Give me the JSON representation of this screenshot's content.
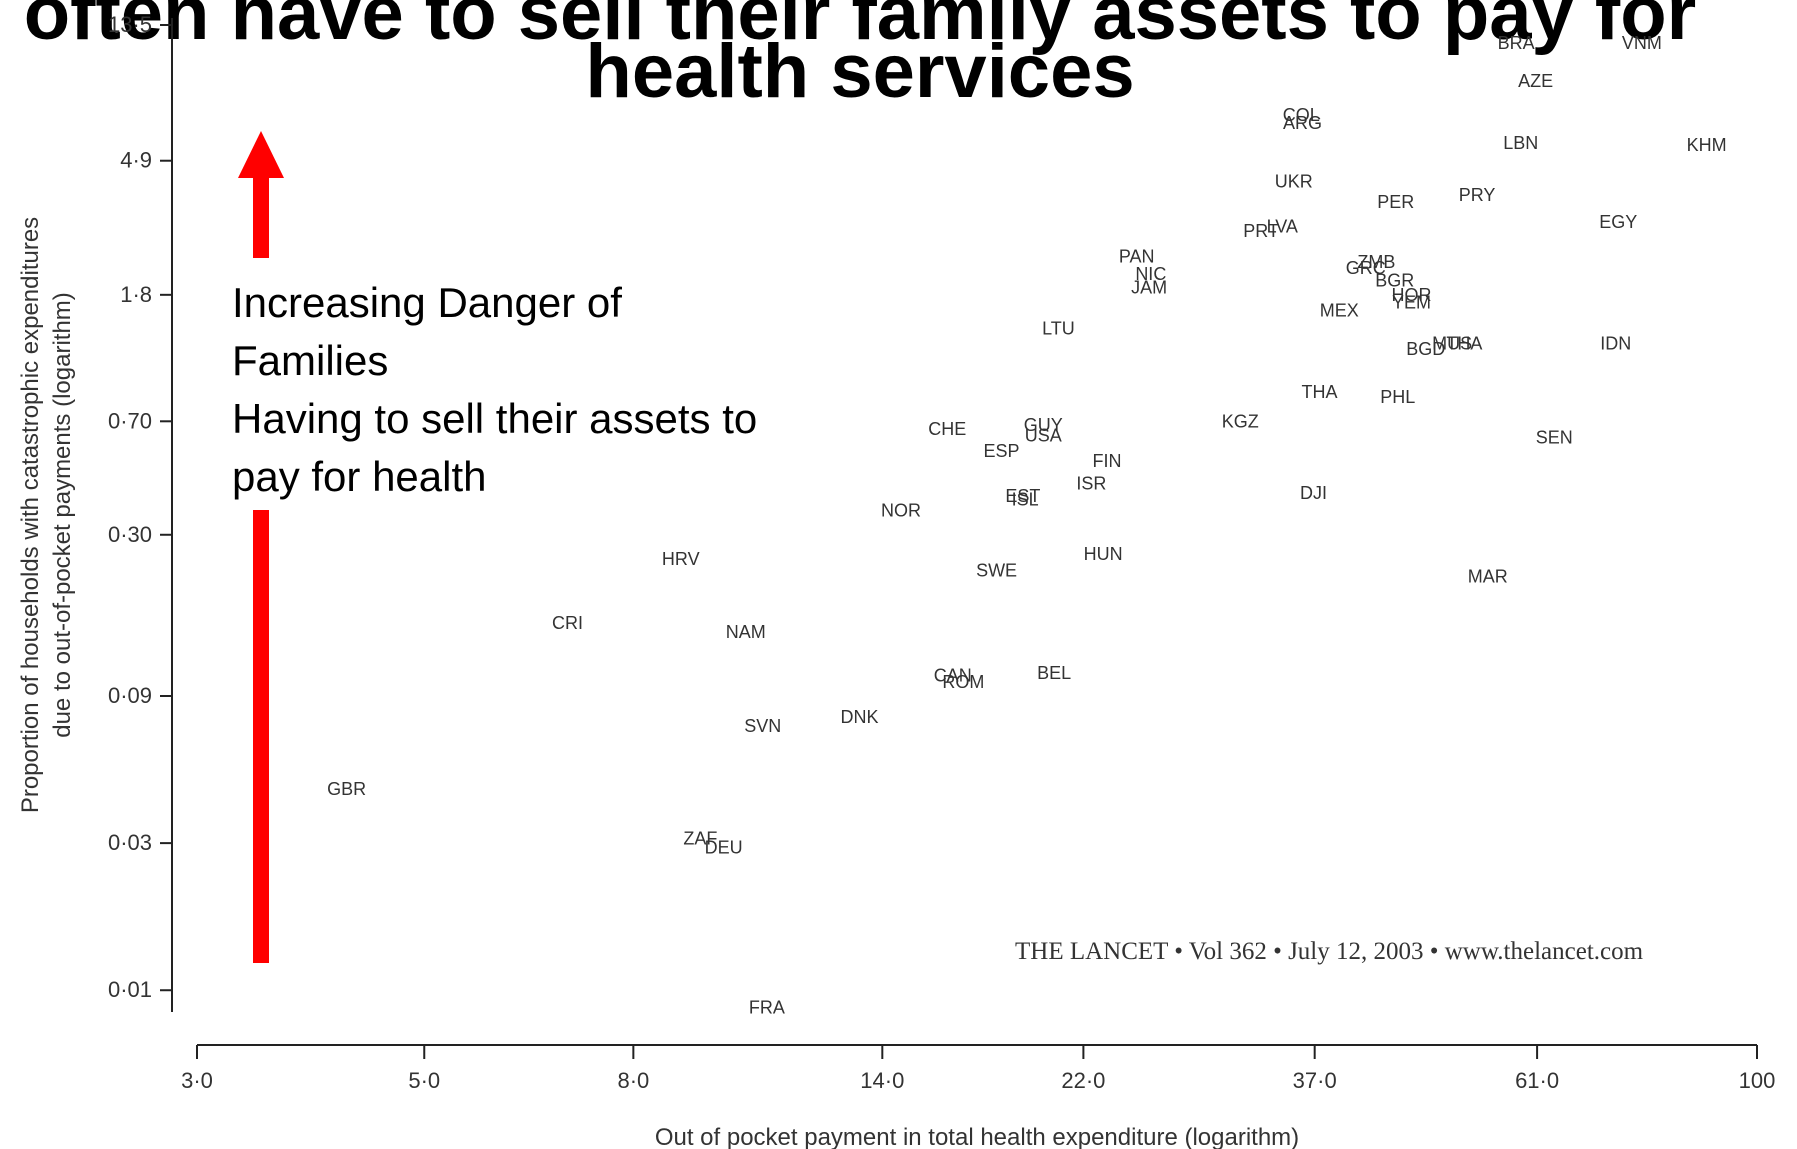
{
  "title": {
    "line1": "often have to sell their family assets to pay for",
    "line2": "health services"
  },
  "annotation": {
    "lines": [
      "Increasing Danger of",
      "Families",
      "Having to sell their assets to",
      "pay for health"
    ],
    "arrow_color": "#ff0000"
  },
  "citation": "THE LANCET • Vol 362 • July 12, 2003 • www.thelancet.com",
  "chart_data": {
    "type": "scatter",
    "xlabel": "Out of pocket payment in total health expenditure (logarithm)",
    "ylabel_lines": [
      "Proportion of households with catastrophic expenditures",
      "due to out-of-pocket payments (logarithm)"
    ],
    "x_scale": "log",
    "y_scale": "log",
    "x_ticks": [
      3.0,
      5.0,
      8.0,
      14.0,
      22.0,
      37.0,
      61.0,
      100
    ],
    "x_tick_labels": [
      "3·0",
      "5·0",
      "8·0",
      "14·0",
      "22·0",
      "37·0",
      "61·0",
      "100"
    ],
    "y_ticks": [
      0.01,
      0.03,
      0.09,
      0.3,
      0.7,
      1.8,
      4.9,
      13.5
    ],
    "y_tick_labels": [
      "0·01",
      "0·03",
      "0·09",
      "0·30",
      "0·70",
      "1·8",
      "4·9",
      "13·5"
    ],
    "xlim": [
      3.0,
      100
    ],
    "ylim": [
      0.0085,
      13.5
    ],
    "grid": false,
    "points": [
      {
        "label": "BRA",
        "x": 58.2,
        "y": 11.8
      },
      {
        "label": "VNM",
        "x": 77.2,
        "y": 11.8
      },
      {
        "label": "AZE",
        "x": 60.8,
        "y": 8.9
      },
      {
        "label": "COL",
        "x": 35.9,
        "y": 6.9
      },
      {
        "label": "ARG",
        "x": 36.0,
        "y": 6.5
      },
      {
        "label": "LBN",
        "x": 58.8,
        "y": 5.6
      },
      {
        "label": "KHM",
        "x": 89.3,
        "y": 5.5
      },
      {
        "label": "UKR",
        "x": 35.3,
        "y": 4.2
      },
      {
        "label": "PRY",
        "x": 53.3,
        "y": 3.8
      },
      {
        "label": "PER",
        "x": 44.4,
        "y": 3.6
      },
      {
        "label": "EGY",
        "x": 73.2,
        "y": 3.1
      },
      {
        "label": "PRT",
        "x": 32.8,
        "y": 2.9
      },
      {
        "label": "LVA",
        "x": 34.4,
        "y": 3.0
      },
      {
        "label": "PAN",
        "x": 24.8,
        "y": 2.4
      },
      {
        "label": "NIC",
        "x": 25.6,
        "y": 2.1
      },
      {
        "label": "JAM",
        "x": 25.5,
        "y": 1.9
      },
      {
        "label": "ZMB",
        "x": 42.5,
        "y": 2.3
      },
      {
        "label": "GRC",
        "x": 41.5,
        "y": 2.2
      },
      {
        "label": "BGR",
        "x": 44.3,
        "y": 2.0
      },
      {
        "label": "HOR",
        "x": 46.0,
        "y": 1.8
      },
      {
        "label": "YEM",
        "x": 46.0,
        "y": 1.7
      },
      {
        "label": "MEX",
        "x": 39.1,
        "y": 1.6
      },
      {
        "label": "LTU",
        "x": 20.8,
        "y": 1.4
      },
      {
        "label": "BGD",
        "x": 47.5,
        "y": 1.2
      },
      {
        "label": "MUS",
        "x": 50.4,
        "y": 1.25
      },
      {
        "label": "THA",
        "x": 51.8,
        "y": 1.25
      },
      {
        "label": "IDN",
        "x": 72.8,
        "y": 1.25
      },
      {
        "label": "THA",
        "x": 37.4,
        "y": 0.87
      },
      {
        "label": "PHL",
        "x": 44.6,
        "y": 0.84
      },
      {
        "label": "KGZ",
        "x": 31.3,
        "y": 0.7
      },
      {
        "label": "SEN",
        "x": 63.4,
        "y": 0.62
      },
      {
        "label": "CHE",
        "x": 16.2,
        "y": 0.66
      },
      {
        "label": "GUY",
        "x": 20.1,
        "y": 0.68
      },
      {
        "label": "USA",
        "x": 20.1,
        "y": 0.63
      },
      {
        "label": "ESP",
        "x": 18.3,
        "y": 0.56
      },
      {
        "label": "FIN",
        "x": 23.2,
        "y": 0.52
      },
      {
        "label": "ISR",
        "x": 22.4,
        "y": 0.44
      },
      {
        "label": "DJI",
        "x": 36.9,
        "y": 0.41
      },
      {
        "label": "EST",
        "x": 19.2,
        "y": 0.4
      },
      {
        "label": "ISL",
        "x": 19.3,
        "y": 0.39
      },
      {
        "label": "NOR",
        "x": 14.6,
        "y": 0.36
      },
      {
        "label": "HRV",
        "x": 8.9,
        "y": 0.25
      },
      {
        "label": "HUN",
        "x": 23.0,
        "y": 0.26
      },
      {
        "label": "SWE",
        "x": 18.1,
        "y": 0.23
      },
      {
        "label": "MAR",
        "x": 54.6,
        "y": 0.22
      },
      {
        "label": "CRI",
        "x": 6.9,
        "y": 0.155
      },
      {
        "label": "NAM",
        "x": 10.3,
        "y": 0.145
      },
      {
        "label": "CAN",
        "x": 16.4,
        "y": 0.105
      },
      {
        "label": "ROM",
        "x": 16.8,
        "y": 0.1
      },
      {
        "label": "BEL",
        "x": 20.6,
        "y": 0.107
      },
      {
        "label": "DNK",
        "x": 13.3,
        "y": 0.077
      },
      {
        "label": "SVN",
        "x": 10.7,
        "y": 0.072
      },
      {
        "label": "GBR",
        "x": 4.2,
        "y": 0.045
      },
      {
        "label": "ZAF",
        "x": 9.3,
        "y": 0.031
      },
      {
        "label": "DEU",
        "x": 9.8,
        "y": 0.029
      },
      {
        "label": "FRA",
        "x": 10.8,
        "y": 0.0088
      }
    ]
  }
}
